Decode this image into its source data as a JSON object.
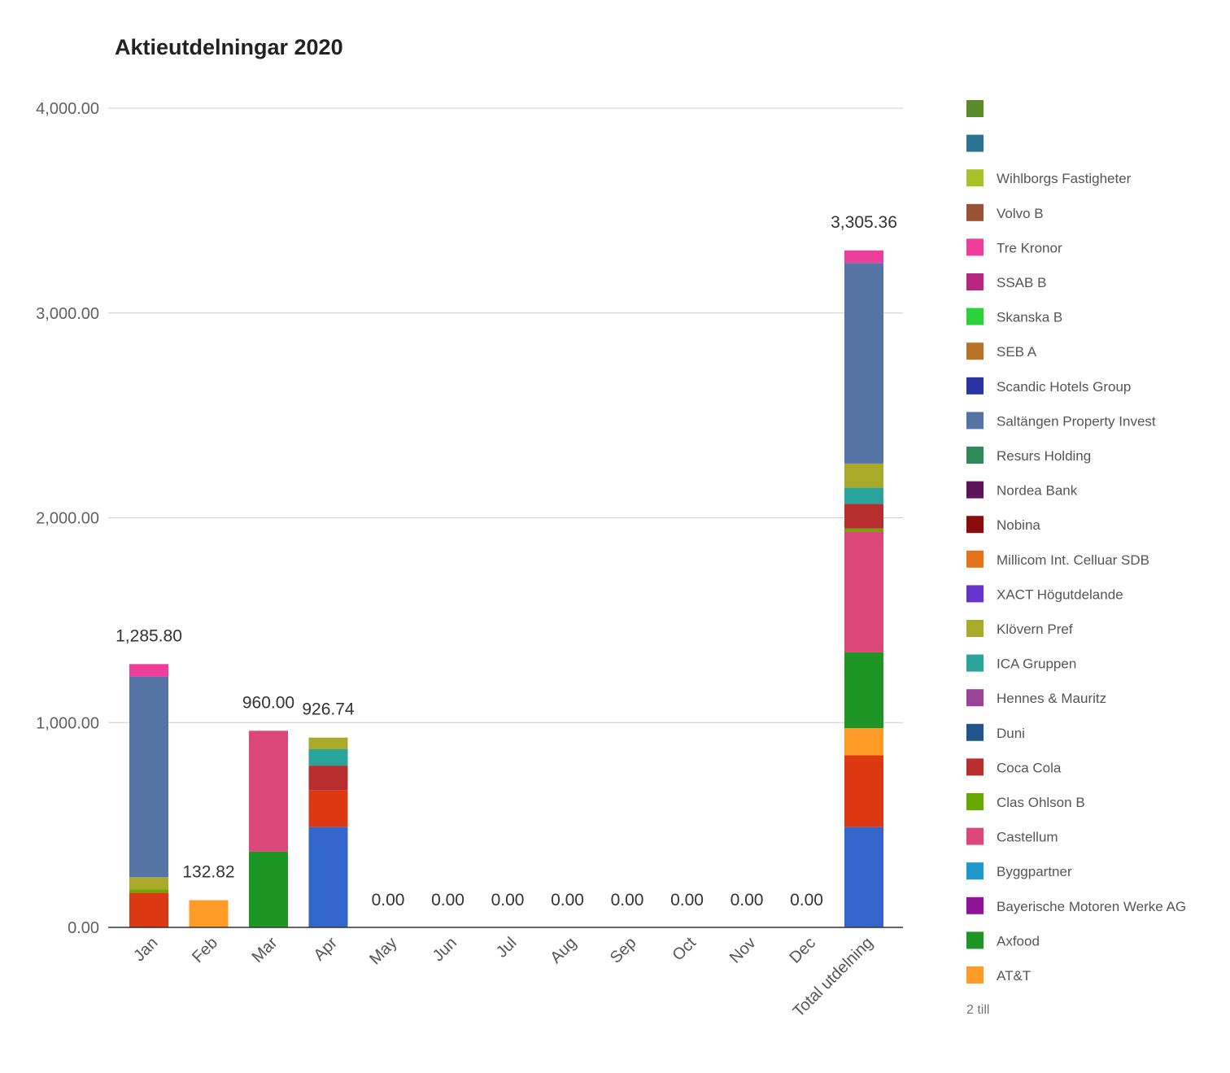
{
  "chart_data": {
    "type": "bar",
    "stacked": true,
    "title": "Aktieutdelningar 2020",
    "xlabel": "",
    "ylabel": "",
    "ylim": [
      0,
      4000
    ],
    "y_ticks": [
      "0.00",
      "1,000.00",
      "2,000.00",
      "3,000.00",
      "4,000.00"
    ],
    "y_tick_values": [
      0,
      1000,
      2000,
      3000,
      4000
    ],
    "grid": true,
    "legend_position": "right",
    "categories": [
      "Jan",
      "Feb",
      "Mar",
      "Apr",
      "May",
      "Jun",
      "Jul",
      "Aug",
      "Sep",
      "Oct",
      "Nov",
      "Dec",
      "Total utdelning"
    ],
    "totals": [
      "1,285.80",
      "132.82",
      "960.00",
      "926.74",
      "0.00",
      "0.00",
      "0.00",
      "0.00",
      "0.00",
      "0.00",
      "0.00",
      "0.00",
      "3,305.36"
    ],
    "series": [
      {
        "name": "",
        "color": "#3366cc",
        "values": [
          0,
          0,
          0,
          490,
          0,
          0,
          0,
          0,
          0,
          0,
          0,
          0,
          490
        ]
      },
      {
        "name": "",
        "color": "#dc3912",
        "values": [
          170,
          0,
          0,
          180,
          0,
          0,
          0,
          0,
          0,
          0,
          0,
          0,
          350
        ]
      },
      {
        "name": "AT&T",
        "color": "#ff9c27",
        "values": [
          0,
          132.82,
          0,
          0,
          0,
          0,
          0,
          0,
          0,
          0,
          0,
          0,
          132.82
        ]
      },
      {
        "name": "Axfood",
        "color": "#1e9626",
        "values": [
          0,
          0,
          370,
          0,
          0,
          0,
          0,
          0,
          0,
          0,
          0,
          0,
          370
        ]
      },
      {
        "name": "Castellum",
        "color": "#dc4779",
        "values": [
          0,
          0,
          590,
          0,
          0,
          0,
          0,
          0,
          0,
          0,
          0,
          0,
          590
        ]
      },
      {
        "name": "Clas Ohlson B",
        "color": "#66aa00",
        "values": [
          15,
          0,
          0,
          0,
          0,
          0,
          0,
          0,
          0,
          0,
          0,
          0,
          15
        ]
      },
      {
        "name": "Coca Cola",
        "color": "#b82e2e",
        "values": [
          0,
          0,
          0,
          120,
          0,
          0,
          0,
          0,
          0,
          0,
          0,
          0,
          120
        ]
      },
      {
        "name": "ICA Gruppen",
        "color": "#2aa59b",
        "values": [
          0,
          0,
          0,
          80,
          0,
          0,
          0,
          0,
          0,
          0,
          0,
          0,
          80
        ]
      },
      {
        "name": "Klövern Pref",
        "color": "#aaaa2a",
        "values": [
          60,
          0,
          0,
          56.74,
          0,
          0,
          0,
          0,
          0,
          0,
          0,
          0,
          116.74
        ]
      },
      {
        "name": "Saltängen Property Invest",
        "color": "#5574a6",
        "values": [
          980,
          0,
          0,
          0,
          0,
          0,
          0,
          0,
          0,
          0,
          0,
          0,
          980
        ]
      },
      {
        "name": "Tre Kronor",
        "color": "#ee3e9c",
        "values": [
          60.8,
          0,
          0,
          0,
          0,
          0,
          0,
          0,
          0,
          0,
          0,
          0,
          60.8
        ]
      }
    ],
    "legend": [
      {
        "name": "",
        "color": "#5b8a2a"
      },
      {
        "name": "",
        "color": "#2a7391"
      },
      {
        "name": "Wihlborgs Fastigheter",
        "color": "#a9c22a"
      },
      {
        "name": "Volvo B",
        "color": "#9a5237"
      },
      {
        "name": "Tre Kronor",
        "color": "#ee3e9c"
      },
      {
        "name": "SSAB B",
        "color": "#b8277f"
      },
      {
        "name": "Skanska B",
        "color": "#2cd23a"
      },
      {
        "name": "SEB A",
        "color": "#b77228"
      },
      {
        "name": "Scandic Hotels Group",
        "color": "#2a33a3"
      },
      {
        "name": "Saltängen Property Invest",
        "color": "#5574a6"
      },
      {
        "name": "Resurs Holding",
        "color": "#2e8b57"
      },
      {
        "name": "Nordea Bank",
        "color": "#5d135a"
      },
      {
        "name": "Nobina",
        "color": "#8b0c0c"
      },
      {
        "name": "Millicom Int. Celluar SDB",
        "color": "#e4731c"
      },
      {
        "name": "XACT Högutdelande",
        "color": "#6633cc"
      },
      {
        "name": "Klövern Pref",
        "color": "#aaaa2a"
      },
      {
        "name": "ICA Gruppen",
        "color": "#2aa59b"
      },
      {
        "name": "Hennes & Mauritz",
        "color": "#994499"
      },
      {
        "name": "Duni",
        "color": "#22558b"
      },
      {
        "name": "Coca Cola",
        "color": "#b82e2e"
      },
      {
        "name": "Clas Ohlson B",
        "color": "#66aa00"
      },
      {
        "name": "Castellum",
        "color": "#dc4779"
      },
      {
        "name": "Byggpartner",
        "color": "#1f98cc"
      },
      {
        "name": "Bayerische Motoren Werke AG",
        "color": "#8f1399"
      },
      {
        "name": "Axfood",
        "color": "#1e9626"
      },
      {
        "name": "AT&T",
        "color": "#ff9c27"
      }
    ],
    "legend_more": "2 till"
  }
}
